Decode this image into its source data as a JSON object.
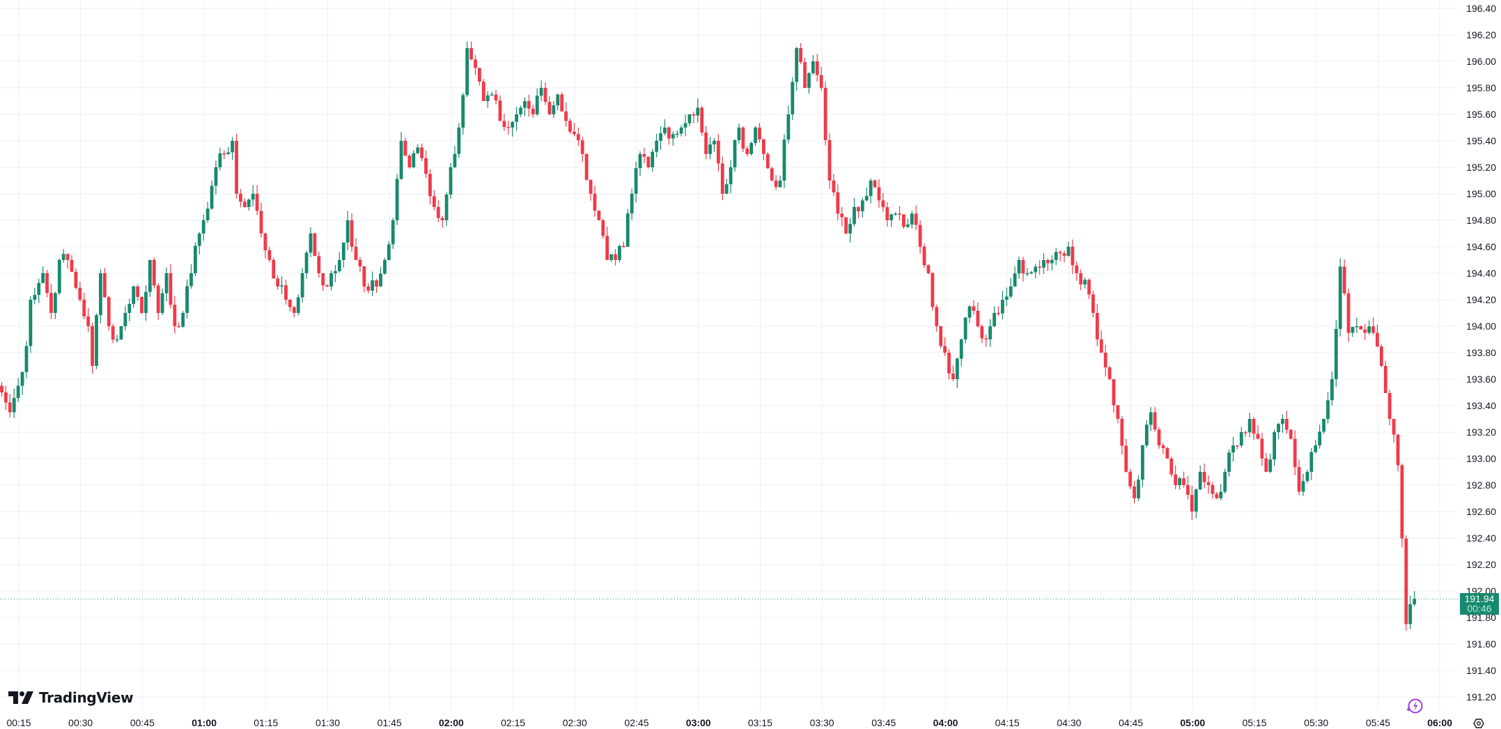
{
  "branding": {
    "logo_text": "TradingView"
  },
  "colors": {
    "up": "#17896e",
    "down": "#ef3a4a",
    "grid": "#eeeff2",
    "text": "#131722",
    "last_price_line": "#17896e"
  },
  "last_price": {
    "value": "191.94",
    "countdown": "00:46"
  },
  "chart_data": {
    "type": "candlestick",
    "title": "",
    "xlabel": "",
    "ylabel": "",
    "ylim": [
      191.2,
      196.4
    ],
    "grid": true,
    "y_ticks": [
      "196.40",
      "196.20",
      "196.00",
      "195.80",
      "195.60",
      "195.40",
      "195.20",
      "195.00",
      "194.80",
      "194.60",
      "194.40",
      "194.20",
      "194.00",
      "193.80",
      "193.60",
      "193.40",
      "193.20",
      "193.00",
      "192.80",
      "192.60",
      "192.40",
      "192.20",
      "192.00",
      "191.80",
      "191.60",
      "191.40",
      "191.20"
    ],
    "x_ticks": [
      {
        "label": "00:15",
        "bold": false
      },
      {
        "label": "00:30",
        "bold": false
      },
      {
        "label": "00:45",
        "bold": false
      },
      {
        "label": "01:00",
        "bold": true
      },
      {
        "label": "01:15",
        "bold": false
      },
      {
        "label": "01:30",
        "bold": false
      },
      {
        "label": "01:45",
        "bold": false
      },
      {
        "label": "02:00",
        "bold": true
      },
      {
        "label": "02:15",
        "bold": false
      },
      {
        "label": "02:30",
        "bold": false
      },
      {
        "label": "02:45",
        "bold": false
      },
      {
        "label": "03:00",
        "bold": true
      },
      {
        "label": "03:15",
        "bold": false
      },
      {
        "label": "03:30",
        "bold": false
      },
      {
        "label": "03:45",
        "bold": false
      },
      {
        "label": "04:00",
        "bold": true
      },
      {
        "label": "04:15",
        "bold": false
      },
      {
        "label": "04:30",
        "bold": false
      },
      {
        "label": "04:45",
        "bold": false
      },
      {
        "label": "05:00",
        "bold": true
      },
      {
        "label": "05:15",
        "bold": false
      },
      {
        "label": "05:30",
        "bold": false
      },
      {
        "label": "05:45",
        "bold": false
      },
      {
        "label": "06:00",
        "bold": true
      }
    ],
    "interval": "1m",
    "start_time": "00:11",
    "close_waypoints_note": "minute offset from 00:11, approximate close",
    "close_waypoints": [
      [
        0,
        193.5
      ],
      [
        2,
        193.35
      ],
      [
        4,
        193.55
      ],
      [
        6,
        193.85
      ],
      [
        7,
        194.2
      ],
      [
        10,
        194.4
      ],
      [
        12,
        194.1
      ],
      [
        14,
        194.5
      ],
      [
        16,
        194.5
      ],
      [
        19,
        194.2
      ],
      [
        21,
        194.0
      ],
      [
        22,
        193.7
      ],
      [
        24,
        194.4
      ],
      [
        26,
        194.0
      ],
      [
        28,
        193.9
      ],
      [
        30,
        194.1
      ],
      [
        32,
        194.3
      ],
      [
        34,
        194.1
      ],
      [
        36,
        194.5
      ],
      [
        38,
        194.1
      ],
      [
        40,
        194.4
      ],
      [
        42,
        194.0
      ],
      [
        44,
        194.1
      ],
      [
        46,
        194.4
      ],
      [
        48,
        194.7
      ],
      [
        49,
        194.8
      ],
      [
        52,
        195.2
      ],
      [
        54,
        195.3
      ],
      [
        56,
        195.4
      ],
      [
        57,
        195.0
      ],
      [
        59,
        194.9
      ],
      [
        61,
        195.0
      ],
      [
        63,
        194.7
      ],
      [
        65,
        194.5
      ],
      [
        67,
        194.3
      ],
      [
        69,
        194.2
      ],
      [
        71,
        194.1
      ],
      [
        73,
        194.4
      ],
      [
        75,
        194.7
      ],
      [
        77,
        194.4
      ],
      [
        79,
        194.3
      ],
      [
        82,
        194.5
      ],
      [
        84,
        194.8
      ],
      [
        86,
        194.5
      ],
      [
        88,
        194.3
      ],
      [
        91,
        194.3
      ],
      [
        93,
        194.5
      ],
      [
        95,
        194.8
      ],
      [
        97,
        195.4
      ],
      [
        99,
        195.2
      ],
      [
        101,
        195.35
      ],
      [
        103,
        195.15
      ],
      [
        105,
        194.9
      ],
      [
        107,
        194.8
      ],
      [
        109,
        195.2
      ],
      [
        111,
        195.5
      ],
      [
        113,
        196.1
      ],
      [
        115,
        195.95
      ],
      [
        117,
        195.7
      ],
      [
        119,
        195.75
      ],
      [
        121,
        195.55
      ],
      [
        123,
        195.5
      ],
      [
        125,
        195.6
      ],
      [
        127,
        195.7
      ],
      [
        129,
        195.6
      ],
      [
        131,
        195.8
      ],
      [
        133,
        195.6
      ],
      [
        135,
        195.75
      ],
      [
        137,
        195.55
      ],
      [
        139,
        195.45
      ],
      [
        141,
        195.3
      ],
      [
        143,
        195.0
      ],
      [
        145,
        194.8
      ],
      [
        147,
        194.5
      ],
      [
        149,
        194.5
      ],
      [
        151,
        194.6
      ],
      [
        153,
        195.0
      ],
      [
        155,
        195.3
      ],
      [
        157,
        195.2
      ],
      [
        159,
        195.4
      ],
      [
        161,
        195.5
      ],
      [
        163,
        195.45
      ],
      [
        165,
        195.5
      ],
      [
        167,
        195.6
      ],
      [
        169,
        195.65
      ],
      [
        171,
        195.3
      ],
      [
        173,
        195.4
      ],
      [
        175,
        195.0
      ],
      [
        177,
        195.2
      ],
      [
        179,
        195.5
      ],
      [
        181,
        195.3
      ],
      [
        183,
        195.5
      ],
      [
        185,
        195.3
      ],
      [
        187,
        195.1
      ],
      [
        189,
        195.1
      ],
      [
        191,
        195.6
      ],
      [
        193,
        196.1
      ],
      [
        195,
        195.8
      ],
      [
        197,
        196.0
      ],
      [
        199,
        195.8
      ],
      [
        201,
        195.1
      ],
      [
        203,
        194.85
      ],
      [
        205,
        194.7
      ],
      [
        207,
        194.9
      ],
      [
        209,
        194.95
      ],
      [
        211,
        195.1
      ],
      [
        213,
        194.95
      ],
      [
        215,
        194.8
      ],
      [
        217,
        194.85
      ],
      [
        219,
        194.75
      ],
      [
        221,
        194.85
      ],
      [
        223,
        194.6
      ],
      [
        225,
        194.4
      ],
      [
        227,
        194.0
      ],
      [
        229,
        193.8
      ],
      [
        231,
        193.6
      ],
      [
        233,
        193.9
      ],
      [
        235,
        194.15
      ],
      [
        237,
        194.0
      ],
      [
        239,
        193.9
      ],
      [
        241,
        194.1
      ],
      [
        243,
        194.2
      ],
      [
        245,
        194.3
      ],
      [
        247,
        194.5
      ],
      [
        249,
        194.4
      ],
      [
        251,
        194.45
      ],
      [
        253,
        194.5
      ],
      [
        255,
        194.5
      ],
      [
        257,
        194.55
      ],
      [
        259,
        194.6
      ],
      [
        261,
        194.4
      ],
      [
        263,
        194.35
      ],
      [
        265,
        194.1
      ],
      [
        267,
        193.8
      ],
      [
        269,
        193.6
      ],
      [
        271,
        193.3
      ],
      [
        273,
        192.9
      ],
      [
        275,
        192.7
      ],
      [
        277,
        193.1
      ],
      [
        279,
        193.35
      ],
      [
        281,
        193.1
      ],
      [
        283,
        193.0
      ],
      [
        285,
        192.8
      ],
      [
        287,
        192.8
      ],
      [
        289,
        192.6
      ],
      [
        291,
        192.9
      ],
      [
        293,
        192.8
      ],
      [
        295,
        192.7
      ],
      [
        297,
        192.9
      ],
      [
        299,
        193.1
      ],
      [
        301,
        193.2
      ],
      [
        303,
        193.3
      ],
      [
        305,
        193.15
      ],
      [
        307,
        192.9
      ],
      [
        309,
        193.2
      ],
      [
        311,
        193.3
      ],
      [
        313,
        193.15
      ],
      [
        315,
        192.75
      ],
      [
        317,
        192.9
      ],
      [
        319,
        193.1
      ],
      [
        321,
        193.3
      ],
      [
        323,
        193.6
      ],
      [
        325,
        194.45
      ],
      [
        327,
        193.95
      ],
      [
        329,
        194.0
      ],
      [
        331,
        193.95
      ],
      [
        333,
        193.95
      ],
      [
        335,
        193.7
      ],
      [
        337,
        193.3
      ],
      [
        339,
        192.95
      ],
      [
        341,
        191.75
      ],
      [
        342,
        191.9
      ],
      [
        343,
        191.94
      ]
    ]
  }
}
